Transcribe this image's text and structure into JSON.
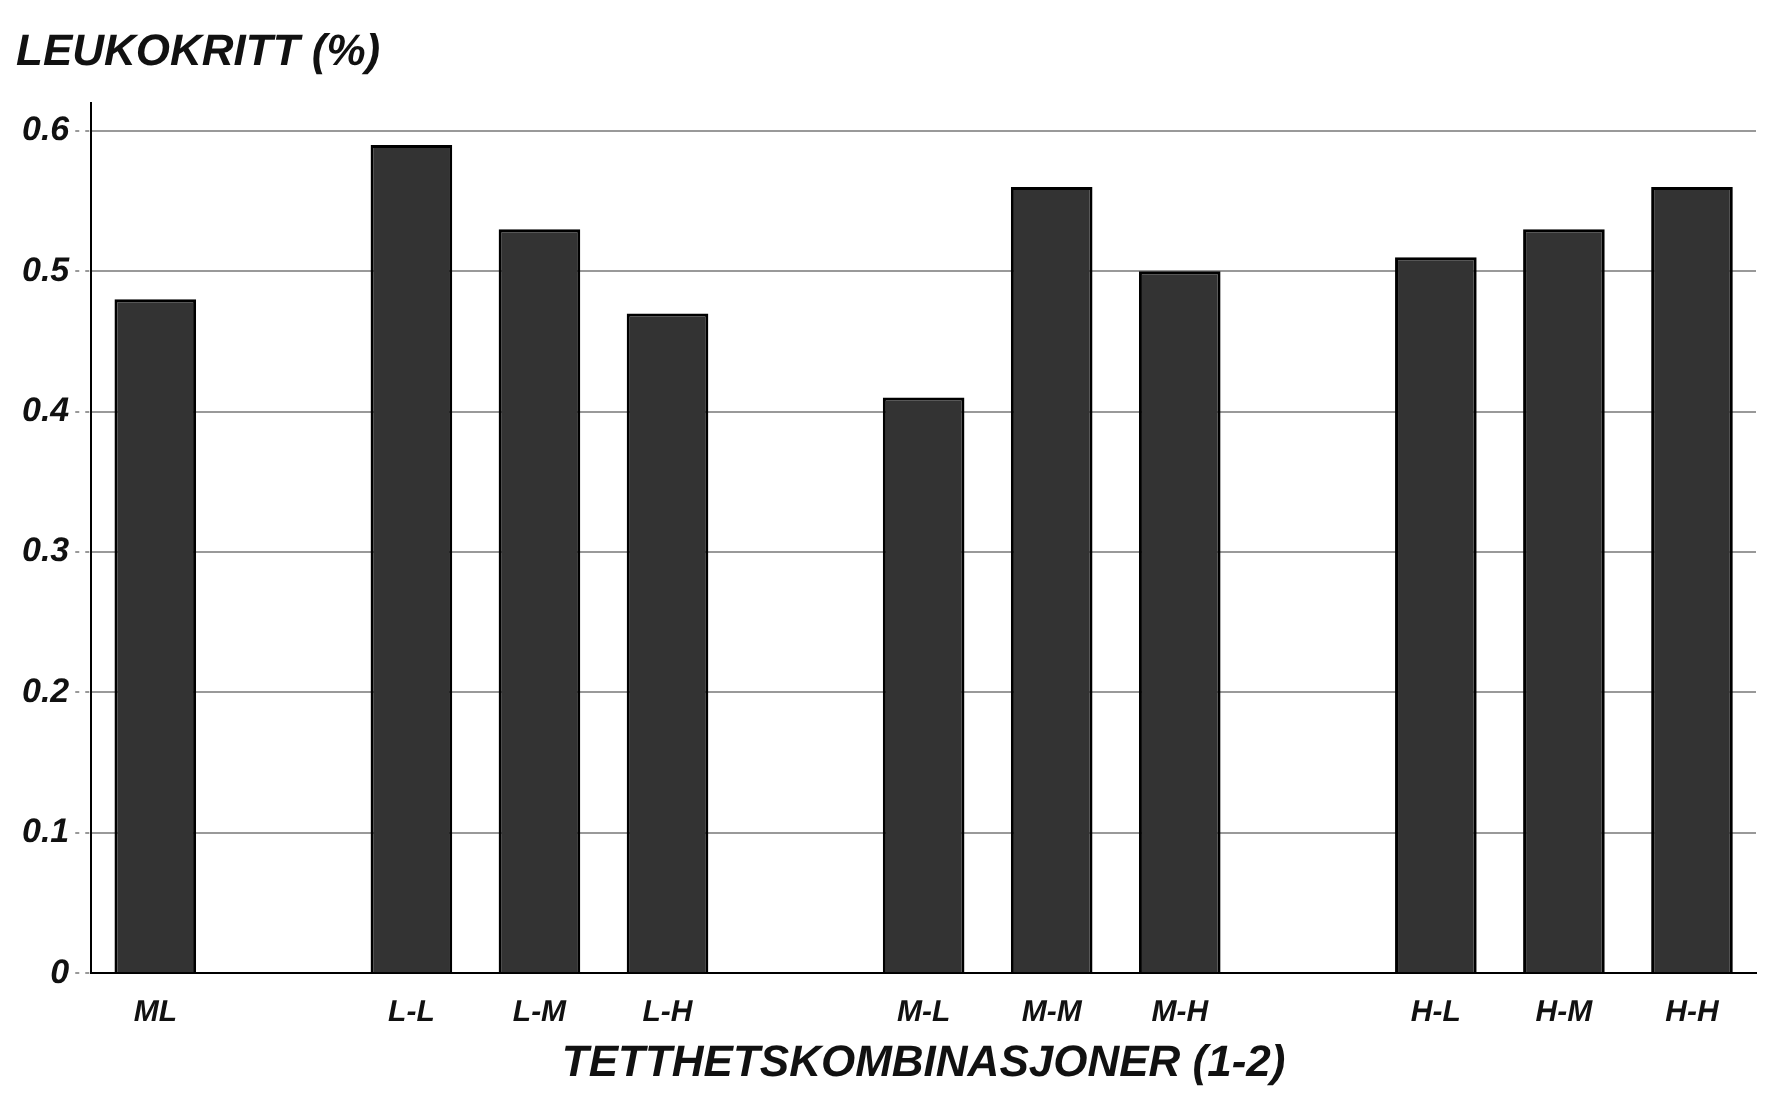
{
  "chart_data": {
    "type": "bar",
    "title": "LEUKOKRITT (%)",
    "xlabel": "TETTHETSKOMBINASJONER (1-2)",
    "categories": [
      "ML",
      null,
      "L-L",
      "L-M",
      "L-H",
      null,
      "M-L",
      "M-M",
      "M-H",
      null,
      "H-L",
      "H-M",
      "H-H"
    ],
    "values": [
      0.48,
      null,
      0.59,
      0.53,
      0.47,
      null,
      0.41,
      0.56,
      0.5,
      null,
      0.51,
      0.53,
      0.56
    ],
    "color": "#333333",
    "ylim": [
      0,
      0.62
    ],
    "yticks": [
      {
        "value": 0,
        "label": "0"
      },
      0.1,
      0.2,
      0.3,
      0.4,
      0.5,
      0.6
    ],
    "grid": "y"
  }
}
